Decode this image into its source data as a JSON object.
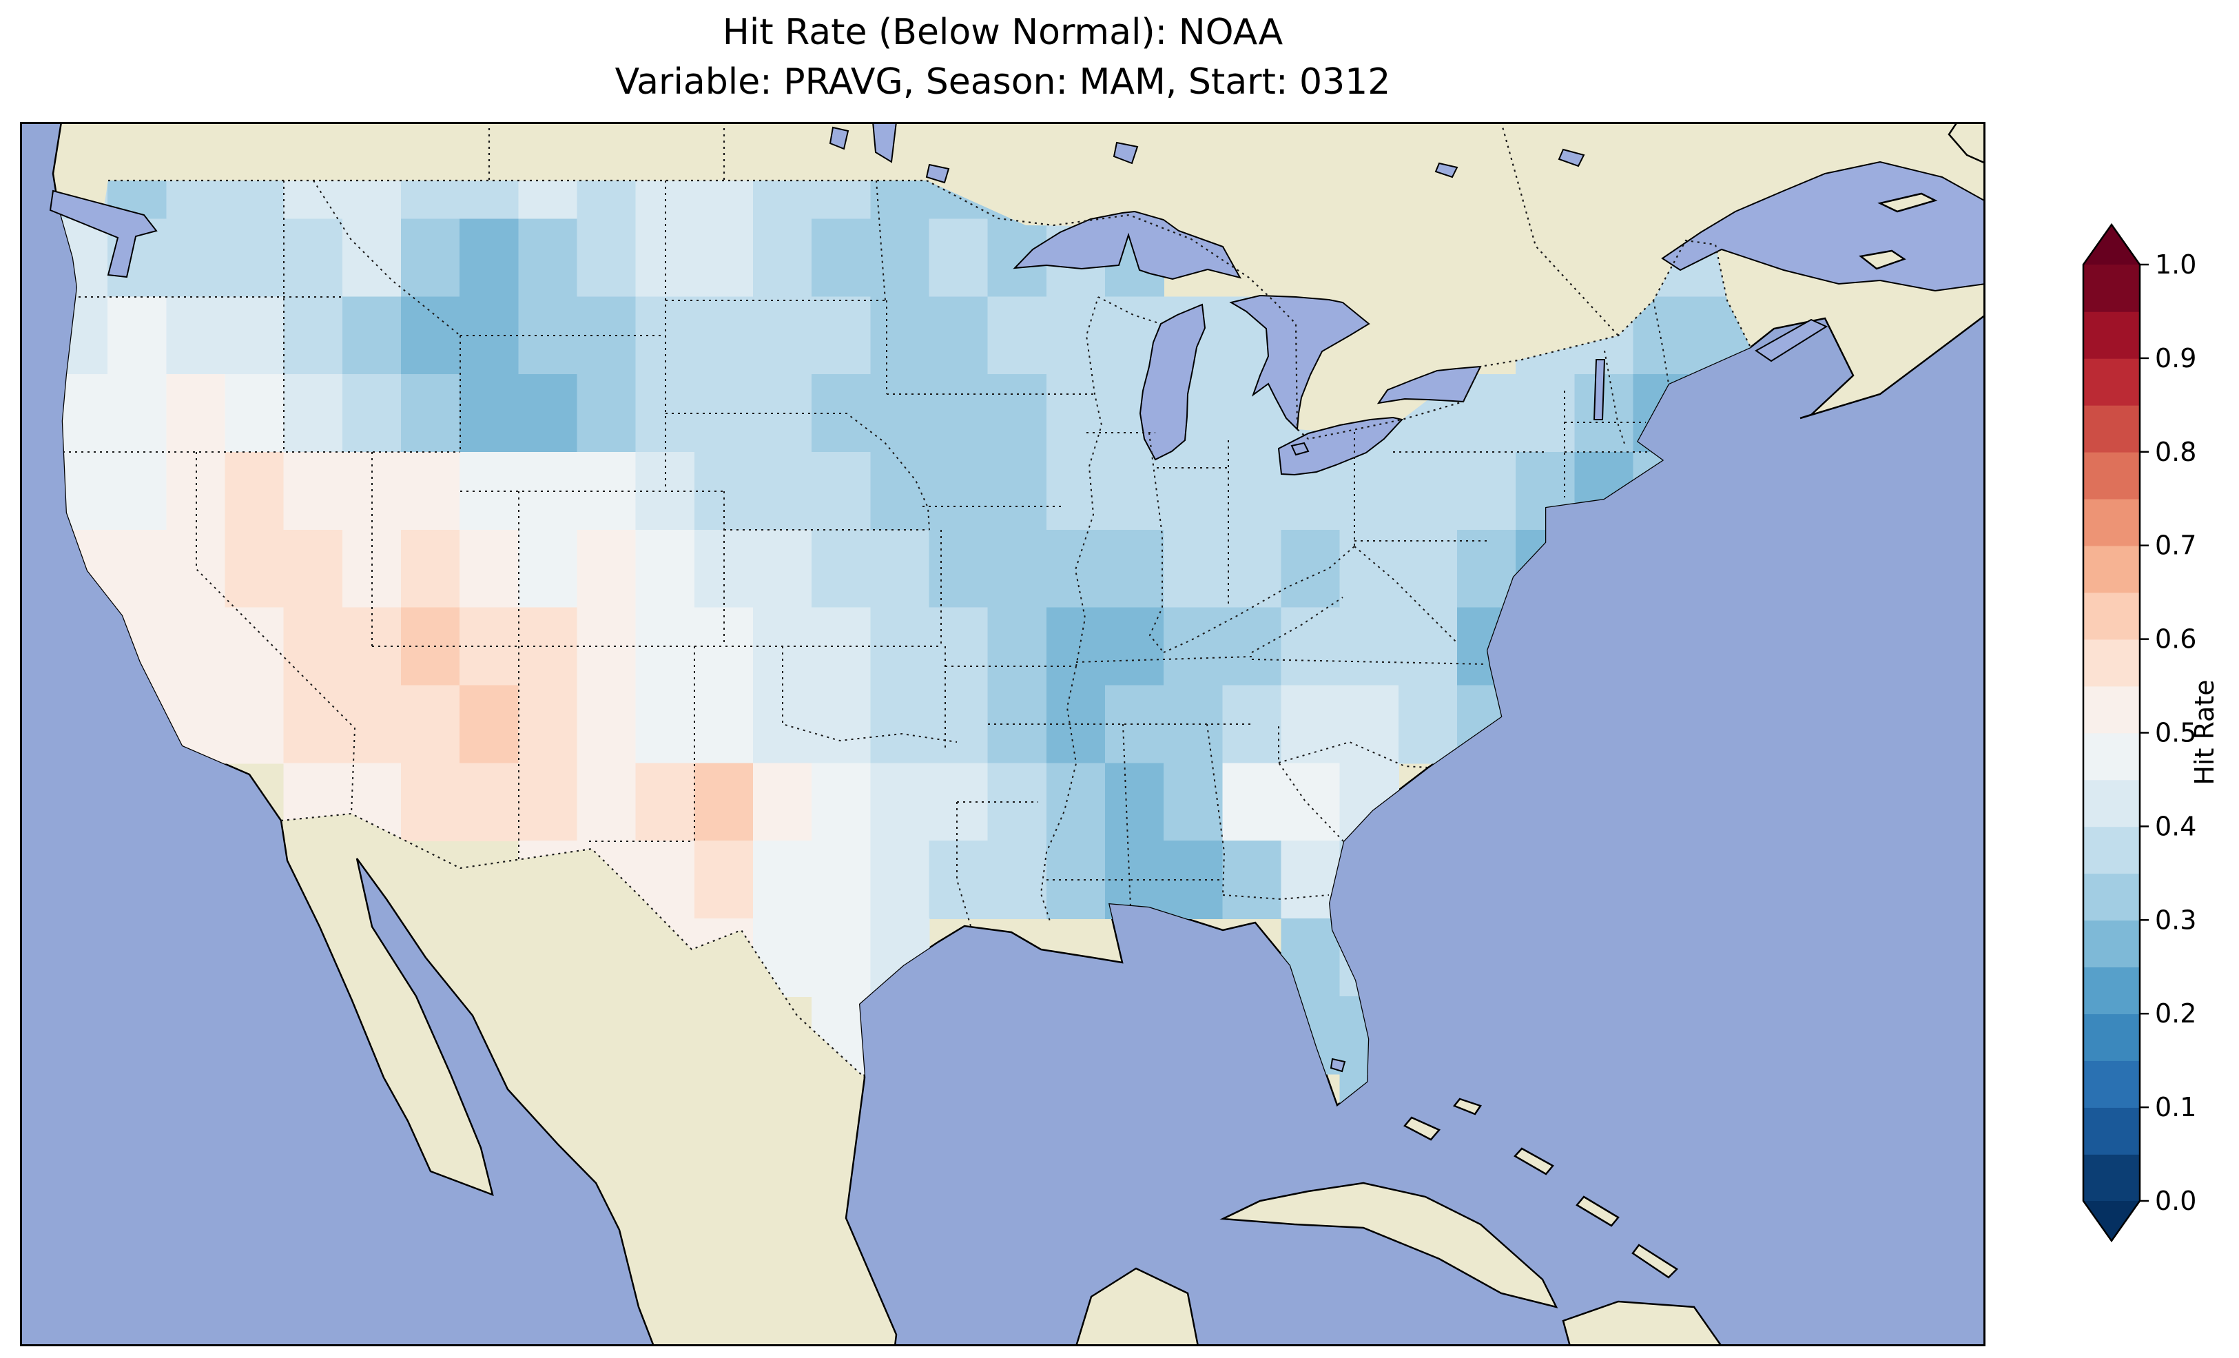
{
  "title": {
    "line1": "Hit Rate (Below Normal): NOAA",
    "line2": "Variable: PRAVG, Season: MAM, Start: 0312"
  },
  "colorbar": {
    "label": "Hit Rate",
    "ticks": [
      "0.0",
      "0.1",
      "0.2",
      "0.3",
      "0.4",
      "0.5",
      "0.6",
      "0.7",
      "0.8",
      "0.9",
      "1.0"
    ],
    "tick_values": [
      0.0,
      0.1,
      0.2,
      0.3,
      0.4,
      0.5,
      0.6,
      0.7,
      0.8,
      0.9,
      1.0
    ],
    "bin_size": 0.05,
    "extend": "both",
    "cmap_name": "RdBu_r",
    "cmap_anchors": [
      "#053061",
      "#2166ac",
      "#4393c3",
      "#92c5de",
      "#d1e5f0",
      "#f7f7f7",
      "#fddbc7",
      "#f4a582",
      "#d6604d",
      "#b2182b",
      "#67001f"
    ]
  },
  "colors": {
    "ocean": "#93a7d7",
    "lakes": "#9cadde",
    "land": "#ece9cf",
    "coastline": "#000000",
    "border_dotted": "#1a1a1a",
    "frame": "#000000",
    "background": "#ffffff"
  },
  "chart_data": {
    "type": "heatmap",
    "title": "Hit Rate (Below Normal): NOAA",
    "subtitle": "Variable: PRAVG, Season: MAM, Start: 0312",
    "source": "NOAA",
    "variable": "PRAVG",
    "season": "MAM",
    "start": "0312",
    "metric": "Hit Rate (Below Normal)",
    "colormap": "RdBu_r",
    "value_range": [
      0.0,
      1.0
    ],
    "legend_label": "Hit Rate",
    "grid": {
      "note": "Estimated hit-rate field over CONUS read from the map, 2-degree cells; rows north to south",
      "lon_start": -125,
      "lon_step": 2,
      "lat_start": 50,
      "lat_step": -2,
      "values": [
        [
          0.35,
          0.3,
          0.35,
          0.35,
          0.4,
          0.4,
          0.35,
          0.35,
          0.4,
          0.35,
          0.4,
          0.4,
          0.35,
          0.35,
          0.3,
          0.3,
          0.3,
          null,
          null,
          null,
          null,
          null,
          null,
          null,
          null,
          null,
          null,
          null,
          null
        ],
        [
          0.4,
          0.35,
          0.35,
          0.35,
          0.35,
          0.4,
          0.3,
          0.25,
          0.3,
          0.35,
          0.4,
          0.4,
          0.35,
          0.3,
          0.3,
          0.35,
          0.3,
          0.35,
          0.3,
          null,
          null,
          null,
          null,
          null,
          null,
          null,
          null,
          0.35,
          0.35
        ],
        [
          0.4,
          0.45,
          0.4,
          0.4,
          0.35,
          0.3,
          0.25,
          0.25,
          0.3,
          0.3,
          0.35,
          0.35,
          0.35,
          0.35,
          0.3,
          0.3,
          0.35,
          0.35,
          0.35,
          0.35,
          0.35,
          0.35,
          null,
          null,
          null,
          0.35,
          0.35,
          0.3,
          0.3
        ],
        [
          0.45,
          0.45,
          0.5,
          0.45,
          0.4,
          0.35,
          0.3,
          0.25,
          0.25,
          0.3,
          0.35,
          0.35,
          0.35,
          0.3,
          0.3,
          0.3,
          0.3,
          0.35,
          0.35,
          0.35,
          0.35,
          0.35,
          0.35,
          0.35,
          0.35,
          0.35,
          0.3,
          0.25,
          null
        ],
        [
          0.45,
          0.45,
          0.5,
          0.55,
          0.5,
          0.5,
          0.5,
          0.45,
          0.45,
          0.45,
          0.4,
          0.35,
          0.35,
          0.35,
          0.3,
          0.3,
          0.3,
          0.35,
          0.35,
          0.35,
          0.35,
          0.35,
          0.35,
          0.35,
          0.35,
          0.3,
          0.25,
          0.3,
          null
        ],
        [
          0.5,
          0.5,
          0.5,
          0.55,
          0.55,
          0.5,
          0.55,
          0.5,
          0.45,
          0.5,
          0.45,
          0.4,
          0.4,
          0.35,
          0.35,
          0.3,
          0.3,
          0.3,
          0.3,
          0.35,
          0.35,
          0.3,
          0.35,
          0.35,
          0.3,
          0.25,
          null,
          null,
          null
        ],
        [
          0.5,
          0.5,
          0.5,
          0.5,
          0.55,
          0.55,
          0.6,
          0.55,
          0.55,
          0.5,
          0.45,
          0.45,
          0.4,
          0.4,
          0.35,
          0.35,
          0.3,
          0.25,
          0.25,
          0.3,
          0.3,
          0.35,
          0.35,
          0.35,
          0.25,
          null,
          null,
          null,
          null
        ],
        [
          null,
          0.5,
          0.5,
          0.5,
          0.55,
          0.55,
          0.55,
          0.6,
          0.55,
          0.5,
          0.45,
          0.45,
          0.4,
          0.4,
          0.35,
          0.35,
          0.3,
          0.25,
          0.3,
          0.3,
          0.35,
          0.4,
          0.4,
          0.35,
          0.3,
          null,
          null,
          null,
          null
        ],
        [
          null,
          null,
          null,
          null,
          0.5,
          0.5,
          0.55,
          0.55,
          0.55,
          0.5,
          0.55,
          0.6,
          0.5,
          0.45,
          0.4,
          0.4,
          0.35,
          0.3,
          0.25,
          0.3,
          0.45,
          0.45,
          0.4,
          null,
          null,
          null,
          null,
          null,
          null
        ],
        [
          null,
          null,
          null,
          null,
          null,
          null,
          null,
          null,
          0.5,
          0.5,
          0.5,
          0.55,
          0.45,
          0.45,
          0.4,
          0.35,
          0.35,
          0.3,
          0.25,
          0.25,
          0.3,
          0.4,
          0.35,
          null,
          null,
          null,
          null,
          null,
          null
        ],
        [
          null,
          null,
          null,
          null,
          null,
          null,
          null,
          null,
          null,
          null,
          0.5,
          0.5,
          0.45,
          0.45,
          0.4,
          null,
          null,
          null,
          null,
          null,
          null,
          0.3,
          0.35,
          null,
          null,
          null,
          null,
          null,
          null
        ],
        [
          null,
          null,
          null,
          null,
          null,
          null,
          null,
          null,
          null,
          null,
          null,
          null,
          null,
          0.45,
          null,
          null,
          null,
          null,
          null,
          null,
          null,
          0.3,
          0.3,
          null,
          null,
          null,
          null,
          null,
          null
        ],
        [
          null,
          null,
          null,
          null,
          null,
          null,
          null,
          null,
          null,
          null,
          null,
          null,
          null,
          null,
          null,
          null,
          null,
          null,
          null,
          null,
          null,
          null,
          0.3,
          null,
          null,
          null,
          null,
          null,
          null
        ]
      ]
    }
  }
}
